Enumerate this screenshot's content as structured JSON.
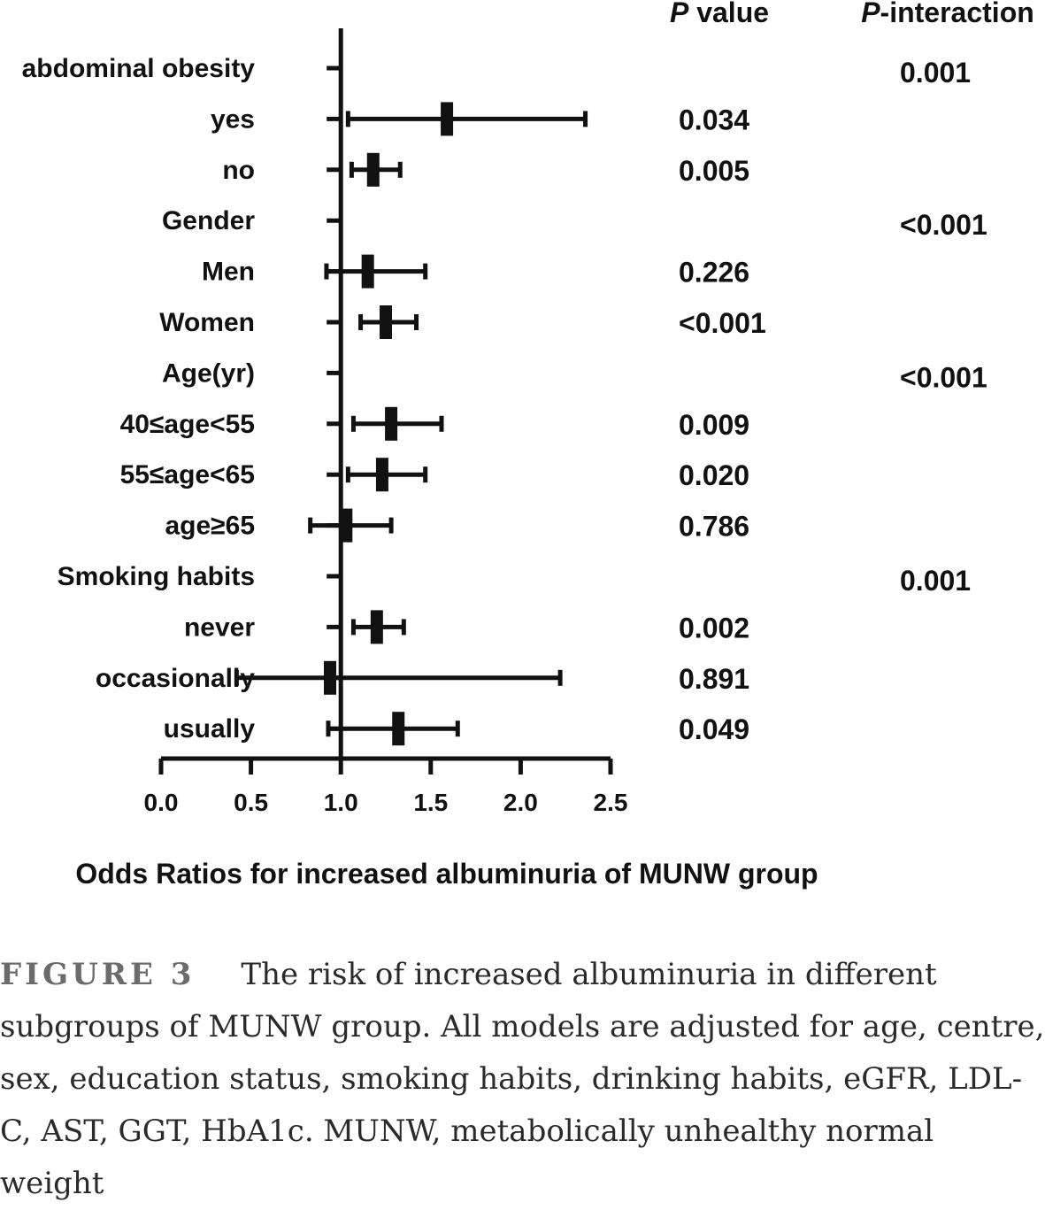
{
  "headers": {
    "p_value_italic": "P",
    "p_value_rest": " value",
    "p_interaction_italic": "P",
    "p_interaction_rest": "-interaction"
  },
  "chart_data": {
    "type": "forest",
    "xlabel": "Odds Ratios for increased albuminuria of MUNW group",
    "xlim": [
      0.0,
      2.5
    ],
    "xticks": [
      "0.0",
      "0.5",
      "1.0",
      "1.5",
      "2.0",
      "2.5"
    ],
    "reference_line": 1.0,
    "rows": [
      {
        "label": "abdominal obesity",
        "group": true,
        "p_interaction": "0.001"
      },
      {
        "label": "yes",
        "or": 1.59,
        "lower": 1.04,
        "upper": 2.36,
        "p_value": "0.034"
      },
      {
        "label": "no",
        "or": 1.18,
        "lower": 1.06,
        "upper": 1.33,
        "p_value": "0.005"
      },
      {
        "label": "Gender",
        "group": true,
        "p_interaction": "<0.001"
      },
      {
        "label": "Men",
        "or": 1.15,
        "lower": 0.92,
        "upper": 1.47,
        "p_value": "0.226"
      },
      {
        "label": "Women",
        "or": 1.25,
        "lower": 1.11,
        "upper": 1.42,
        "p_value": "<0.001"
      },
      {
        "label": "Age(yr)",
        "group": true,
        "p_interaction": "<0.001"
      },
      {
        "label": "40≤age<55",
        "or": 1.28,
        "lower": 1.07,
        "upper": 1.56,
        "p_value": "0.009"
      },
      {
        "label": "55≤age<65",
        "or": 1.23,
        "lower": 1.04,
        "upper": 1.47,
        "p_value": "0.020"
      },
      {
        "label": "age≥65",
        "or": 1.03,
        "lower": 0.83,
        "upper": 1.28,
        "p_value": "0.786"
      },
      {
        "label": "Smoking habits",
        "group": true,
        "p_interaction": "0.001"
      },
      {
        "label": "never",
        "or": 1.2,
        "lower": 1.07,
        "upper": 1.35,
        "p_value": "0.002"
      },
      {
        "label": "occasionally",
        "or": 0.94,
        "lower": 0.42,
        "upper": 2.22,
        "p_value": "0.891"
      },
      {
        "label": "usually",
        "or": 1.32,
        "lower": 0.93,
        "upper": 1.65,
        "p_value": "0.049"
      }
    ]
  },
  "caption": {
    "label": "FIGURE 3",
    "text": "The risk of increased albuminuria in different subgroups of MUNW group. All models are adjusted for age, centre, sex, education status, smoking habits, drinking habits, eGFR, LDL-C, AST, GGT, HbA1c. MUNW, metabolically unhealthy normal weight"
  }
}
